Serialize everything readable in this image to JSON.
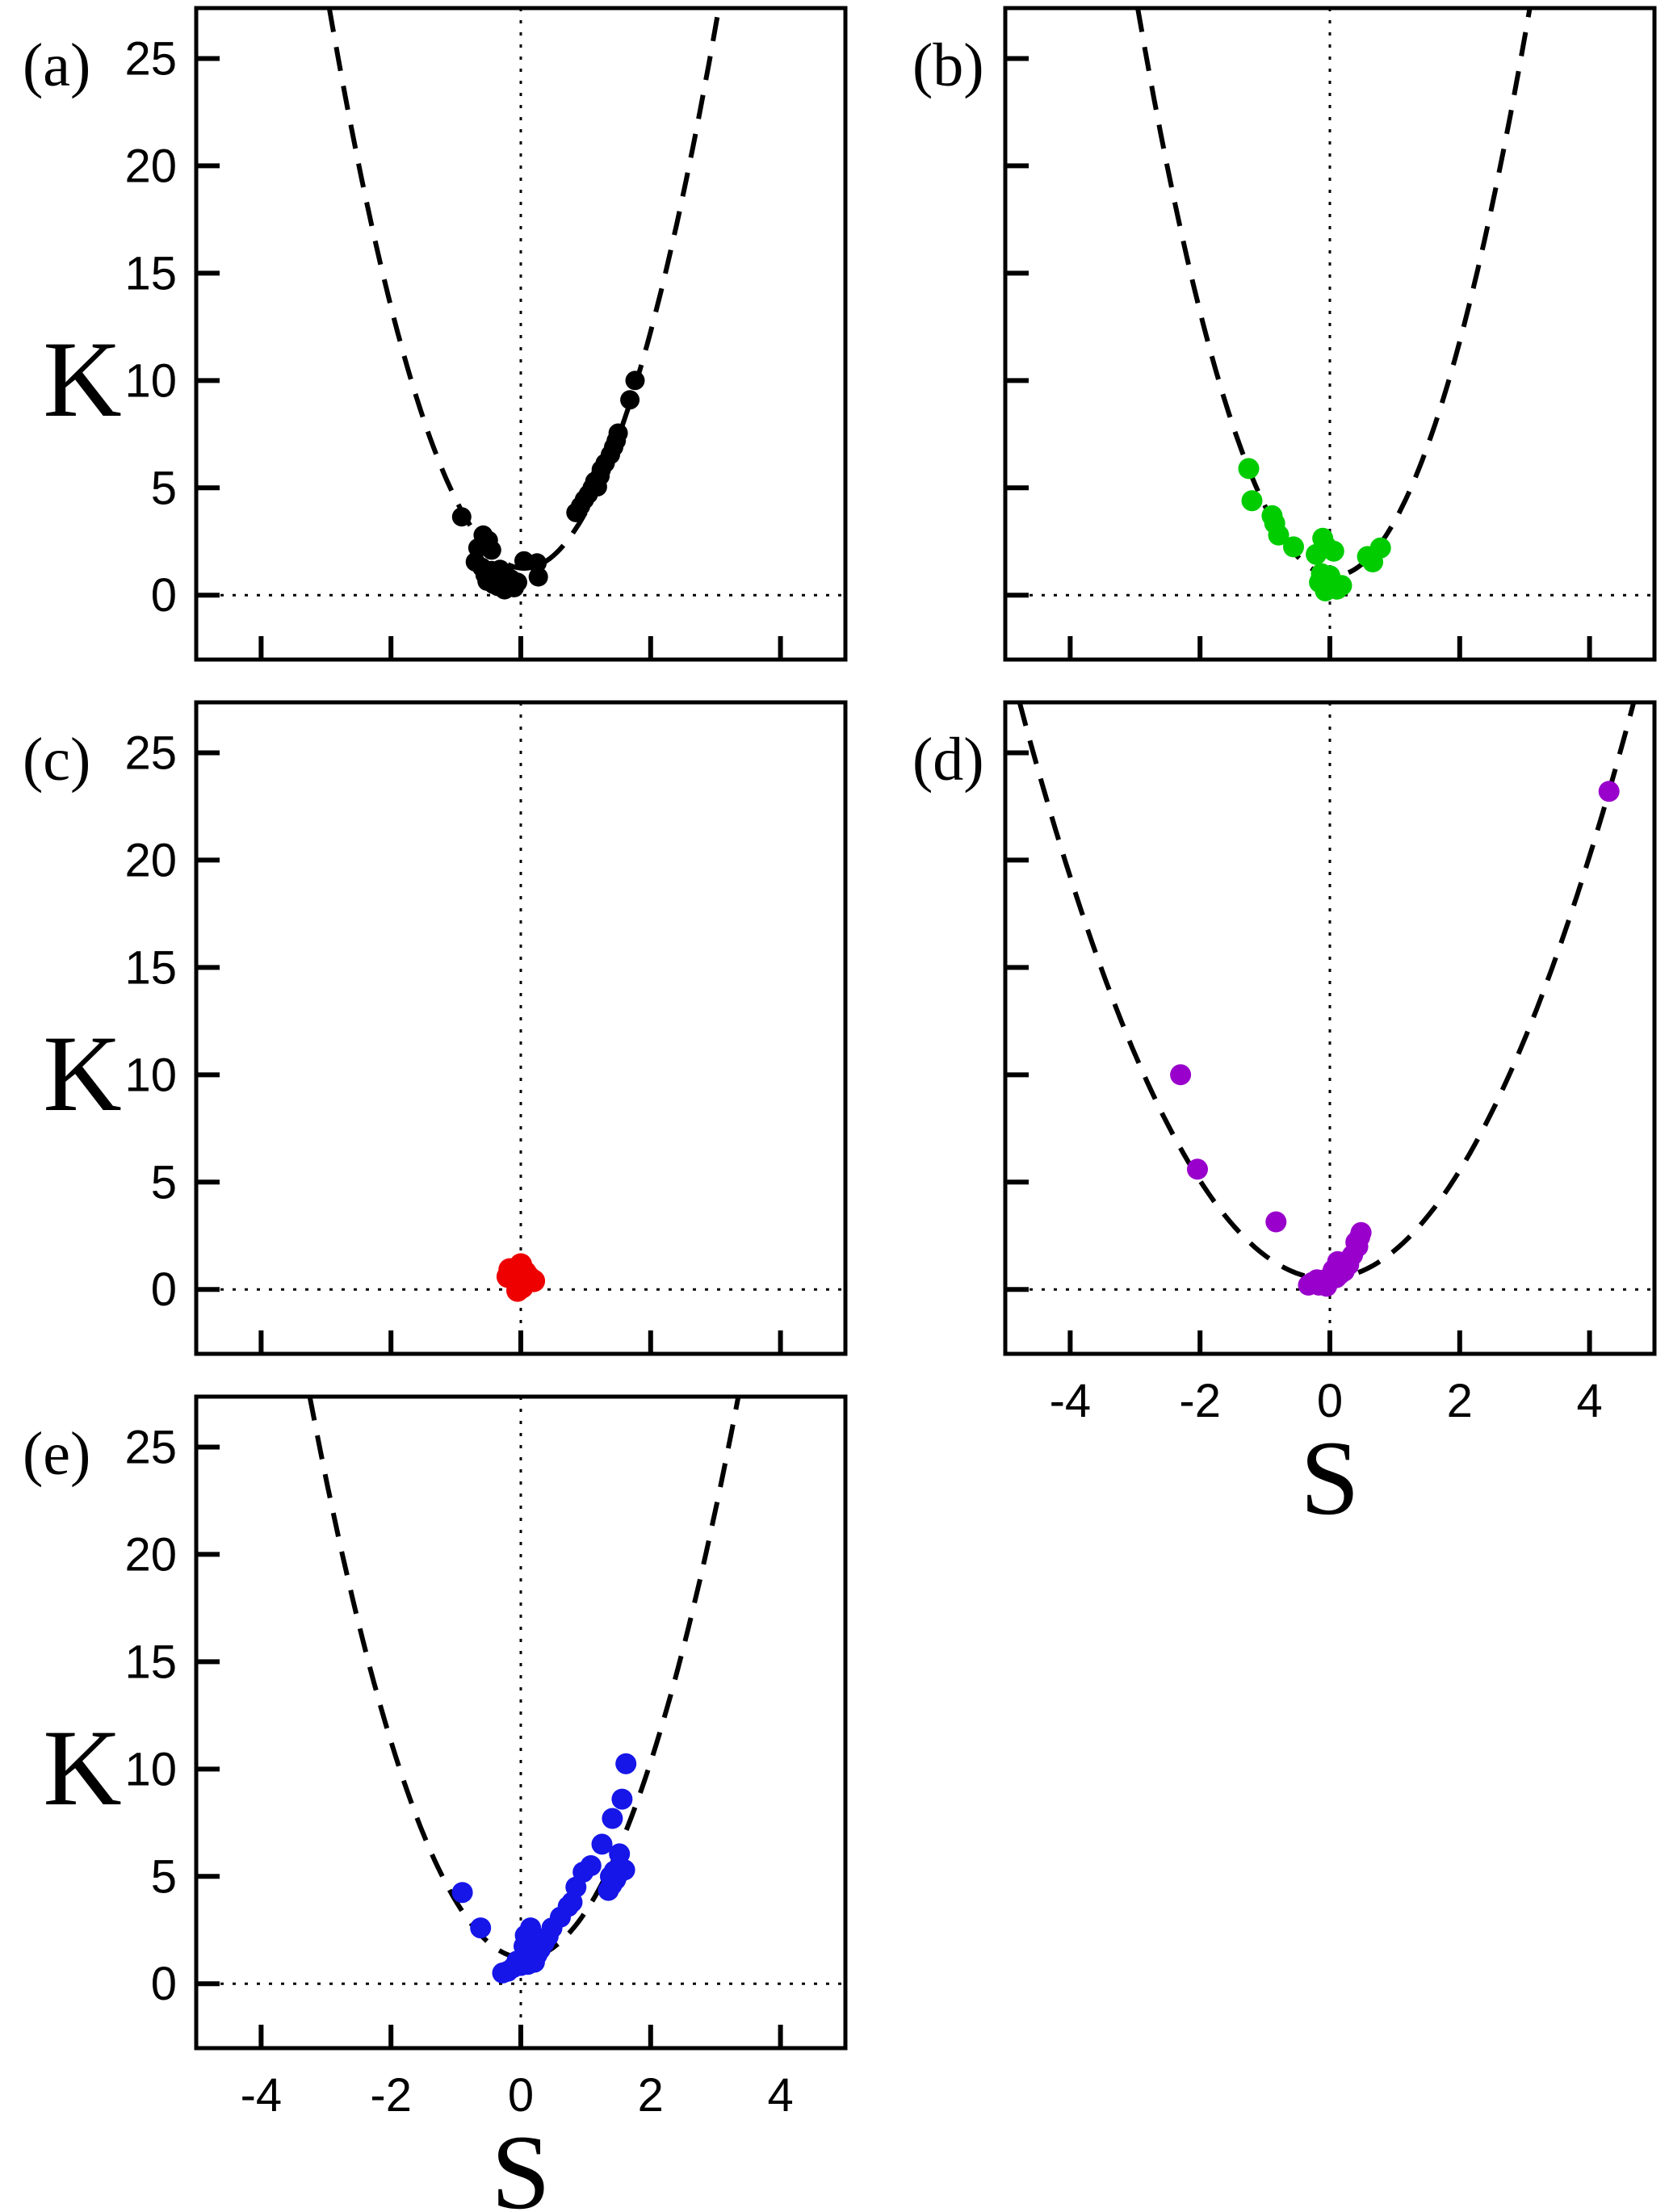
{
  "figure": {
    "title": "",
    "axis_color": "#000000",
    "background": "#ffffff"
  },
  "chart_data": {
    "type": "scatter",
    "title": "",
    "xlabel": "S",
    "ylabel": "K",
    "xlim": [
      -5,
      5
    ],
    "ylim": [
      -3.0,
      27.35
    ],
    "xticks": [
      -4,
      -2,
      0,
      2,
      4
    ],
    "yticks": [
      0,
      5,
      10,
      15,
      20,
      25
    ],
    "grid": false,
    "legend": "none",
    "annotations": {
      "zero_vline_x": 0,
      "zero_hline_y": 0
    },
    "panels": [
      {
        "id": "a",
        "label": "(a)",
        "color": "#000000",
        "marker_radius": 12,
        "show_y_tick_labels": true,
        "show_x_tick_labels": false,
        "show_ylabel": true,
        "show_xlabel": false,
        "fit_curve": {
          "type": "parabola",
          "s0": 0.05,
          "k0": 1.25,
          "a": 2.9
        },
        "points": [
          [
            -0.91,
            3.65
          ],
          [
            -0.58,
            2.8
          ],
          [
            -0.66,
            2.2
          ],
          [
            -0.5,
            2.55
          ],
          [
            -0.45,
            2.1
          ],
          [
            -0.7,
            1.55
          ],
          [
            -0.6,
            1.3
          ],
          [
            -0.55,
            0.95
          ],
          [
            -0.52,
            0.65
          ],
          [
            -0.45,
            1.15
          ],
          [
            -0.42,
            0.5
          ],
          [
            -0.38,
            0.85
          ],
          [
            -0.35,
            0.4
          ],
          [
            -0.32,
            1.2
          ],
          [
            -0.28,
            0.6
          ],
          [
            -0.25,
            0.25
          ],
          [
            -0.22,
            0.9
          ],
          [
            -0.18,
            0.5
          ],
          [
            -0.15,
            0.75
          ],
          [
            -0.1,
            0.35
          ],
          [
            -0.05,
            0.6
          ],
          [
            0.05,
            1.6
          ],
          [
            0.25,
            1.5
          ],
          [
            0.27,
            0.85
          ],
          [
            0.85,
            3.85
          ],
          [
            0.92,
            4.15
          ],
          [
            0.98,
            4.45
          ],
          [
            1.04,
            4.7
          ],
          [
            1.1,
            5.0
          ],
          [
            1.14,
            5.3
          ],
          [
            1.18,
            5.05
          ],
          [
            1.22,
            5.55
          ],
          [
            1.24,
            5.85
          ],
          [
            1.3,
            6.15
          ],
          [
            1.38,
            6.55
          ],
          [
            1.43,
            6.9
          ],
          [
            1.47,
            7.2
          ],
          [
            1.5,
            7.55
          ],
          [
            1.68,
            9.1
          ],
          [
            1.76,
            10.0
          ]
        ]
      },
      {
        "id": "b",
        "label": "(b)",
        "color": "#00cc00",
        "marker_radius": 13,
        "show_y_tick_labels": false,
        "show_x_tick_labels": false,
        "show_ylabel": false,
        "show_xlabel": false,
        "fit_curve": {
          "type": "parabola",
          "s0": 0.06,
          "k0": 0.9,
          "a": 2.9
        },
        "points": [
          [
            -1.25,
            5.9
          ],
          [
            -1.2,
            4.4
          ],
          [
            -0.89,
            3.7
          ],
          [
            -0.85,
            3.35
          ],
          [
            -0.79,
            2.8
          ],
          [
            -0.56,
            2.25
          ],
          [
            -0.21,
            1.9
          ],
          [
            -0.11,
            2.65
          ],
          [
            -0.05,
            2.25
          ],
          [
            0.06,
            2.05
          ],
          [
            0.58,
            1.8
          ],
          [
            0.66,
            1.55
          ],
          [
            0.78,
            2.2
          ],
          [
            -0.16,
            0.6
          ],
          [
            -0.13,
            1.0
          ],
          [
            -0.07,
            0.2
          ],
          [
            -0.04,
            0.65
          ],
          [
            0.0,
            0.9
          ],
          [
            0.03,
            0.4
          ],
          [
            0.11,
            0.28
          ],
          [
            0.18,
            0.45
          ]
        ]
      },
      {
        "id": "c",
        "label": "(c)",
        "color": "#ee0000",
        "marker_radius": 14,
        "show_y_tick_labels": true,
        "show_x_tick_labels": false,
        "show_ylabel": true,
        "show_xlabel": false,
        "fit_curve": null,
        "points": [
          [
            -0.17,
            0.93
          ],
          [
            0.0,
            1.16
          ],
          [
            0.11,
            0.62
          ],
          [
            -0.1,
            0.45
          ],
          [
            0.02,
            0.1
          ],
          [
            0.15,
            0.5
          ],
          [
            -0.2,
            0.6
          ],
          [
            0.07,
            0.8
          ],
          [
            -0.05,
            -0.05
          ],
          [
            0.2,
            0.4
          ]
        ]
      },
      {
        "id": "d",
        "label": "(d)",
        "color": "#9900cc",
        "marker_radius": 13,
        "show_y_tick_labels": false,
        "show_x_tick_labels": true,
        "show_ylabel": false,
        "show_xlabel": true,
        "fit_curve": {
          "type": "parabola",
          "s0": -0.05,
          "k0": 0.5,
          "a": 1.2
        },
        "points": [
          [
            4.3,
            23.2
          ],
          [
            -2.3,
            10.0
          ],
          [
            -2.04,
            5.6
          ],
          [
            -0.83,
            3.15
          ],
          [
            0.48,
            2.65
          ],
          [
            0.46,
            2.45
          ],
          [
            0.43,
            2.0
          ],
          [
            0.4,
            2.2
          ],
          [
            0.35,
            1.6
          ],
          [
            0.29,
            1.15
          ],
          [
            0.12,
            1.3
          ],
          [
            -0.33,
            0.2
          ],
          [
            -0.27,
            0.33
          ],
          [
            -0.2,
            0.45
          ],
          [
            -0.17,
            0.2
          ],
          [
            -0.08,
            0.45
          ],
          [
            -0.05,
            0.15
          ],
          [
            0.05,
            0.9
          ],
          [
            0.1,
            0.55
          ],
          [
            0.15,
            0.7
          ],
          [
            0.22,
            0.85
          ],
          [
            0.3,
            1.4
          ]
        ]
      },
      {
        "id": "e",
        "label": "(e)",
        "color": "#1616e8",
        "marker_radius": 13,
        "show_y_tick_labels": true,
        "show_x_tick_labels": true,
        "show_ylabel": true,
        "show_xlabel": true,
        "fit_curve": {
          "type": "parabola",
          "s0": 0.05,
          "k0": 1.2,
          "a": 2.4
        },
        "points": [
          [
            -0.9,
            4.25
          ],
          [
            -0.62,
            2.6
          ],
          [
            -0.28,
            0.5
          ],
          [
            -0.2,
            0.58
          ],
          [
            -0.12,
            0.75
          ],
          [
            -0.06,
            1.05
          ],
          [
            0.0,
            0.85
          ],
          [
            0.06,
            0.95
          ],
          [
            0.11,
            0.9
          ],
          [
            0.18,
            1.1
          ],
          [
            0.21,
            1.0
          ],
          [
            0.25,
            1.35
          ],
          [
            0.3,
            1.6
          ],
          [
            0.36,
            1.9
          ],
          [
            0.42,
            2.2
          ],
          [
            0.15,
            2.6
          ],
          [
            0.07,
            2.25
          ],
          [
            0.05,
            1.75
          ],
          [
            0.48,
            2.6
          ],
          [
            0.61,
            3.1
          ],
          [
            0.73,
            3.6
          ],
          [
            0.79,
            3.8
          ],
          [
            0.85,
            4.5
          ],
          [
            0.96,
            5.2
          ],
          [
            1.08,
            5.5
          ],
          [
            1.25,
            6.5
          ],
          [
            1.41,
            7.7
          ],
          [
            1.56,
            8.6
          ],
          [
            1.62,
            10.25
          ],
          [
            1.35,
            4.35
          ],
          [
            1.4,
            4.6
          ],
          [
            1.46,
            4.85
          ],
          [
            1.5,
            5.1
          ],
          [
            1.55,
            5.35
          ],
          [
            1.6,
            5.3
          ],
          [
            1.52,
            6.05
          ],
          [
            1.44,
            5.25
          ],
          [
            1.38,
            5.0
          ]
        ]
      }
    ]
  }
}
